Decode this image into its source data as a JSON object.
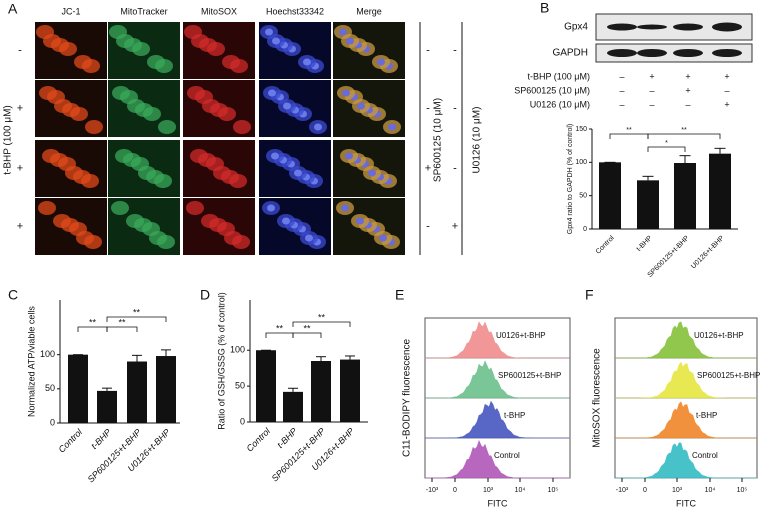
{
  "panel_a": {
    "label": "A",
    "columns": [
      "JC-1",
      "MitoTracker",
      "MitoSOX",
      "Hoechst33342",
      "Merge"
    ],
    "tbhp_label": "t-BHP (100 μM)",
    "tbhp_signs": [
      "-",
      "+",
      "+",
      "+"
    ],
    "sp_label": "SP600125 (10 μM)",
    "sp_signs": [
      "-",
      "-",
      "+",
      "-"
    ],
    "u_label": "U0126 (10 μM)",
    "u_signs": [
      "-",
      "-",
      "-",
      "+"
    ]
  },
  "panel_b": {
    "label": "B",
    "blots": [
      "Gpx4",
      "GAPDH"
    ],
    "treatments": [
      {
        "name": "t-BHP (100 μM)",
        "signs": [
          "–",
          "+",
          "+",
          "+"
        ]
      },
      {
        "name": "SP600125 (10 μM)",
        "signs": [
          "–",
          "–",
          "+",
          "–"
        ]
      },
      {
        "name": "U0126 (10 μM)",
        "signs": [
          "–",
          "–",
          "–",
          "+"
        ]
      }
    ],
    "chart": {
      "type": "bar",
      "ylabel": "Gpx4 ratio to GAPDH (% of control)",
      "categories": [
        "Control",
        "t-BHP",
        "SP600125+t-BHP",
        "U0126+t-BHP"
      ],
      "values": [
        100,
        73,
        99,
        113
      ],
      "errors": [
        0,
        6,
        11,
        8
      ],
      "ylim": [
        0,
        150
      ],
      "yticks": [
        0,
        50,
        100,
        150
      ],
      "color": "#111111",
      "significance": [
        "**",
        "*",
        "**"
      ]
    }
  },
  "panel_c": {
    "label": "C",
    "chart": {
      "type": "bar",
      "ylabel": "Normalized ATP/viable cells",
      "categories": [
        "Control",
        "t-BHP",
        "SP600125+t-BHP",
        "U0126+t-BHP"
      ],
      "values": [
        100,
        47,
        90,
        98
      ],
      "errors": [
        0,
        4,
        9,
        9
      ],
      "ylim": [
        0,
        180
      ],
      "yticks": [
        0,
        50,
        100
      ],
      "color": "#111111",
      "significance": [
        "**",
        "**",
        "**"
      ]
    }
  },
  "panel_d": {
    "label": "D",
    "chart": {
      "type": "bar",
      "ylabel": "Ratio of GSH/GSSG (% of control)",
      "categories": [
        "Control",
        "t-BHP",
        "SP600125+t-BHP",
        "U0126+t-BHP"
      ],
      "values": [
        100,
        42,
        85,
        87
      ],
      "errors": [
        0,
        5,
        6,
        5
      ],
      "ylim": [
        0,
        170
      ],
      "yticks": [
        0,
        50,
        100
      ],
      "color": "#111111",
      "significance": [
        "**",
        "**",
        "**"
      ]
    }
  },
  "panel_e": {
    "label": "E",
    "ylabel": "C11-BODIPY fluorescence",
    "xlabel": "FITC",
    "xtick_labels": [
      "-10³",
      "0",
      "10³",
      "10⁴",
      "10⁵"
    ],
    "histograms": [
      {
        "name": "U0126+t-BHP",
        "color": "#f08c8c"
      },
      {
        "name": "SP600125+t-BHP",
        "color": "#6cc08c"
      },
      {
        "name": "t-BHP",
        "color": "#4656c0"
      },
      {
        "name": "Control",
        "color": "#b058b8"
      }
    ]
  },
  "panel_f": {
    "label": "F",
    "ylabel": "MitoSOX fluorescence",
    "xlabel": "FITC",
    "xtick_labels": [
      "-10³",
      "0",
      "10³",
      "10⁴",
      "10⁵"
    ],
    "histograms": [
      {
        "name": "U0126+t-BHP",
        "color": "#86c23a"
      },
      {
        "name": "SP600125+t-BHP",
        "color": "#e6e640"
      },
      {
        "name": "t-BHP",
        "color": "#f0862a"
      },
      {
        "name": "Control",
        "color": "#34bcc4"
      }
    ]
  }
}
